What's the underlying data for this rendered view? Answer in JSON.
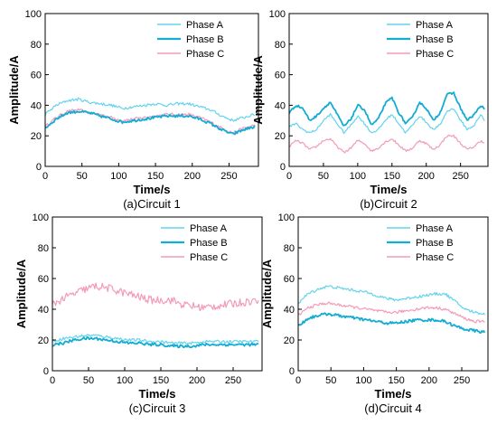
{
  "colors": {
    "phase_a": "#62d4ec",
    "phase_b": "#12acd4",
    "phase_c": "#f49ab8"
  },
  "chart_data": [
    {
      "type": "line",
      "caption": "(a)Circuit 1",
      "xlabel": "Time/s",
      "ylabel": "Amplitude/A",
      "xlim": [
        0,
        290
      ],
      "ylim": [
        0,
        100
      ],
      "xticks": [
        0,
        50,
        100,
        150,
        200,
        250
      ],
      "yticks": [
        0,
        20,
        40,
        60,
        80,
        100
      ],
      "legend_position": "top-right",
      "series": [
        {
          "name": "Phase A",
          "color": "#62d4ec",
          "width": 1.2,
          "x": [
            0,
            15,
            30,
            45,
            60,
            75,
            90,
            105,
            120,
            135,
            150,
            165,
            180,
            195,
            210,
            225,
            240,
            255,
            270,
            285
          ],
          "y": [
            34,
            40,
            43,
            44,
            42,
            41,
            40,
            38,
            39,
            40,
            41,
            40,
            41,
            41,
            39,
            37,
            33,
            30,
            32,
            34
          ]
        },
        {
          "name": "Phase B",
          "color": "#12acd4",
          "width": 1.8,
          "x": [
            0,
            15,
            30,
            45,
            60,
            75,
            90,
            105,
            120,
            135,
            150,
            165,
            180,
            195,
            210,
            225,
            240,
            255,
            270,
            285
          ],
          "y": [
            25,
            31,
            35,
            36,
            35,
            33,
            31,
            29,
            30,
            31,
            32,
            33,
            33,
            33,
            31,
            28,
            24,
            21,
            24,
            26
          ]
        },
        {
          "name": "Phase C",
          "color": "#f49ab8",
          "width": 1.2,
          "x": [
            0,
            15,
            30,
            45,
            60,
            75,
            90,
            105,
            120,
            135,
            150,
            165,
            180,
            195,
            210,
            225,
            240,
            255,
            270,
            285
          ],
          "y": [
            26,
            32,
            36,
            37,
            35,
            34,
            32,
            30,
            31,
            32,
            33,
            34,
            34,
            34,
            32,
            29,
            25,
            22,
            25,
            27
          ]
        }
      ]
    },
    {
      "type": "line",
      "caption": "(b)Circuit 2",
      "xlabel": "Time/s",
      "ylabel": "Amplitude/A",
      "xlim": [
        0,
        290
      ],
      "ylim": [
        0,
        100
      ],
      "xticks": [
        0,
        50,
        100,
        150,
        200,
        250
      ],
      "yticks": [
        0,
        20,
        40,
        60,
        80,
        100
      ],
      "legend_position": "top-right",
      "series": [
        {
          "name": "Phase A",
          "color": "#62d4ec",
          "width": 1.2,
          "x": [
            0,
            10,
            20,
            30,
            40,
            50,
            60,
            70,
            80,
            90,
            100,
            110,
            120,
            130,
            140,
            150,
            160,
            170,
            180,
            190,
            200,
            210,
            220,
            230,
            240,
            250,
            260,
            270,
            280,
            285
          ],
          "y": [
            26,
            28,
            24,
            22,
            24,
            30,
            34,
            28,
            22,
            27,
            33,
            28,
            22,
            24,
            30,
            34,
            28,
            22,
            27,
            33,
            29,
            24,
            27,
            36,
            38,
            30,
            24,
            27,
            34,
            30
          ]
        },
        {
          "name": "Phase B",
          "color": "#12acd4",
          "width": 1.8,
          "x": [
            0,
            10,
            20,
            30,
            40,
            50,
            60,
            70,
            80,
            90,
            100,
            110,
            120,
            130,
            140,
            150,
            160,
            170,
            180,
            190,
            200,
            210,
            220,
            230,
            240,
            250,
            260,
            270,
            280,
            285
          ],
          "y": [
            35,
            40,
            38,
            30,
            33,
            38,
            42,
            34,
            26,
            31,
            40,
            37,
            27,
            31,
            41,
            45,
            35,
            28,
            32,
            42,
            38,
            30,
            35,
            47,
            48,
            38,
            30,
            34,
            40,
            37
          ]
        },
        {
          "name": "Phase C",
          "color": "#f49ab8",
          "width": 1.2,
          "x": [
            0,
            10,
            20,
            30,
            40,
            50,
            60,
            70,
            80,
            90,
            100,
            110,
            120,
            130,
            140,
            150,
            160,
            170,
            180,
            190,
            200,
            210,
            220,
            230,
            240,
            250,
            260,
            270,
            280,
            285
          ],
          "y": [
            13,
            17,
            15,
            11,
            13,
            17,
            18,
            13,
            9,
            12,
            17,
            15,
            10,
            12,
            16,
            18,
            14,
            10,
            12,
            17,
            15,
            11,
            14,
            20,
            20,
            15,
            11,
            13,
            17,
            15
          ]
        }
      ]
    },
    {
      "type": "line",
      "caption": "(c)Circuit 3",
      "xlabel": "Time/s",
      "ylabel": "Amplitude/A",
      "xlim": [
        0,
        290
      ],
      "ylim": [
        0,
        100
      ],
      "xticks": [
        0,
        50,
        100,
        150,
        200,
        250
      ],
      "yticks": [
        0,
        20,
        40,
        60,
        80,
        100
      ],
      "legend_position": "top-right",
      "series": [
        {
          "name": "Phase A",
          "color": "#62d4ec",
          "width": 1.2,
          "x": [
            0,
            15,
            30,
            45,
            60,
            75,
            90,
            105,
            120,
            135,
            150,
            165,
            180,
            195,
            210,
            225,
            240,
            255,
            270,
            285
          ],
          "y": [
            19,
            21,
            22,
            23,
            23,
            22,
            21,
            20,
            20,
            19,
            19,
            18,
            18,
            18,
            19,
            19,
            19,
            19,
            19,
            19
          ]
        },
        {
          "name": "Phase B",
          "color": "#12acd4",
          "width": 1.8,
          "x": [
            0,
            15,
            30,
            45,
            60,
            75,
            90,
            105,
            120,
            135,
            150,
            165,
            180,
            195,
            210,
            225,
            240,
            255,
            270,
            285
          ],
          "y": [
            17,
            18,
            20,
            21,
            21,
            20,
            19,
            18,
            18,
            17,
            17,
            16,
            16,
            16,
            17,
            17,
            17,
            17,
            17,
            17
          ]
        },
        {
          "name": "Phase C",
          "color": "#f49ab8",
          "width": 1.2,
          "x": [
            0,
            15,
            30,
            45,
            60,
            75,
            90,
            105,
            120,
            135,
            150,
            165,
            180,
            195,
            210,
            225,
            240,
            255,
            270,
            285
          ],
          "y": [
            43,
            47,
            50,
            53,
            55,
            54,
            52,
            50,
            48,
            46,
            46,
            46,
            43,
            42,
            41,
            42,
            43,
            44,
            45,
            46
          ]
        }
      ]
    },
    {
      "type": "line",
      "caption": "(d)Circuit 4",
      "xlabel": "Time/s",
      "ylabel": "Amplitude/A",
      "xlim": [
        0,
        290
      ],
      "ylim": [
        0,
        100
      ],
      "xticks": [
        0,
        50,
        100,
        150,
        200,
        250
      ],
      "yticks": [
        0,
        20,
        40,
        60,
        80,
        100
      ],
      "legend_position": "top-right",
      "series": [
        {
          "name": "Phase A",
          "color": "#62d4ec",
          "width": 1.2,
          "x": [
            0,
            15,
            30,
            45,
            60,
            75,
            90,
            105,
            120,
            135,
            150,
            165,
            180,
            195,
            210,
            225,
            240,
            255,
            270,
            285
          ],
          "y": [
            44,
            50,
            53,
            55,
            54,
            53,
            52,
            51,
            49,
            47,
            46,
            47,
            48,
            49,
            50,
            50,
            45,
            40,
            38,
            37
          ]
        },
        {
          "name": "Phase B",
          "color": "#12acd4",
          "width": 1.8,
          "x": [
            0,
            15,
            30,
            45,
            60,
            75,
            90,
            105,
            120,
            135,
            150,
            165,
            180,
            195,
            210,
            225,
            240,
            255,
            270,
            285
          ],
          "y": [
            29,
            34,
            36,
            37,
            36,
            35,
            34,
            33,
            32,
            31,
            31,
            32,
            33,
            33,
            33,
            32,
            29,
            27,
            26,
            25
          ]
        },
        {
          "name": "Phase C",
          "color": "#f49ab8",
          "width": 1.2,
          "x": [
            0,
            15,
            30,
            45,
            60,
            75,
            90,
            105,
            120,
            135,
            150,
            165,
            180,
            195,
            210,
            225,
            240,
            255,
            270,
            285
          ],
          "y": [
            36,
            41,
            43,
            44,
            43,
            42,
            41,
            40,
            39,
            38,
            38,
            39,
            40,
            41,
            41,
            40,
            37,
            34,
            32,
            32
          ]
        }
      ]
    }
  ]
}
